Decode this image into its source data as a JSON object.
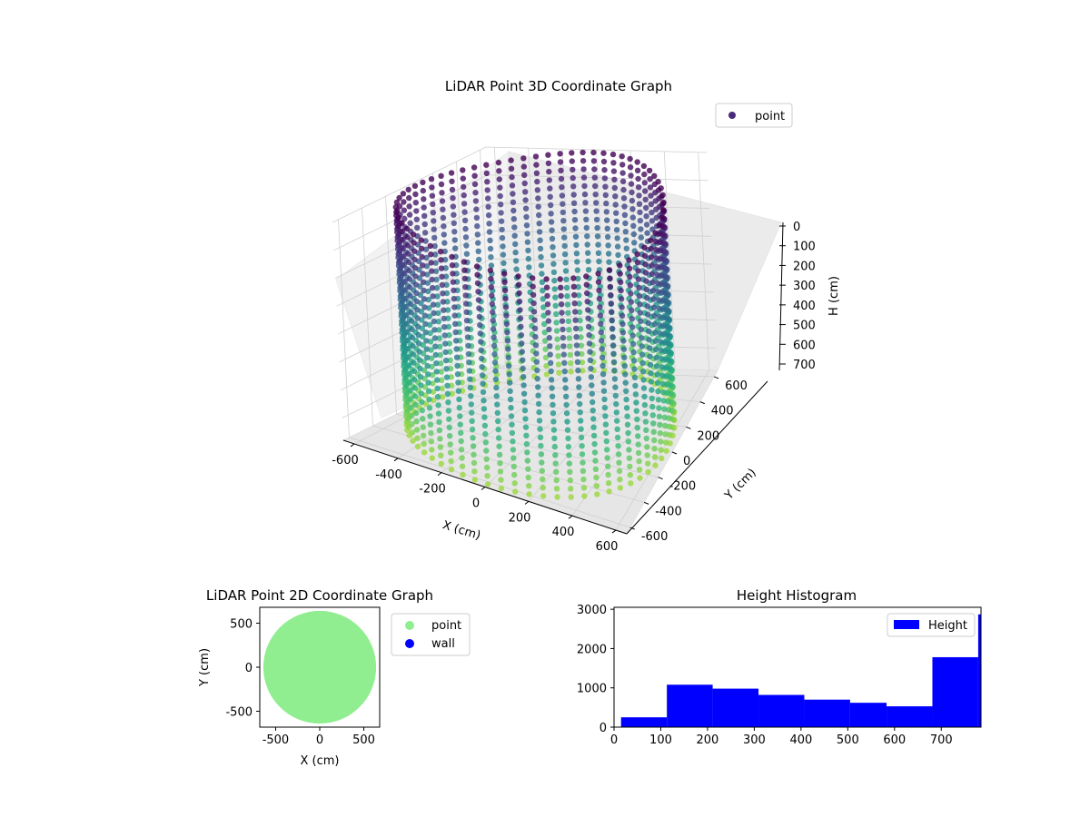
{
  "chart_data": [
    {
      "type": "scatter",
      "projection": "3d",
      "title": "LiDAR Point 3D Coordinate Graph",
      "xlabel": "X (cm)",
      "ylabel": "Y (cm)",
      "zlabel": "H (cm)",
      "xticks": [
        -600,
        -400,
        -200,
        0,
        200,
        400,
        600
      ],
      "yticks": [
        -600,
        -400,
        -200,
        0,
        200,
        400,
        600
      ],
      "zticks": [
        0,
        100,
        200,
        300,
        400,
        500,
        600,
        700
      ],
      "xlim": [
        -650,
        650
      ],
      "ylim": [
        -650,
        650
      ],
      "zlim": [
        780,
        0
      ],
      "zaxis_inverted": true,
      "colormap": "viridis",
      "legend": [
        {
          "label": "point",
          "color": "#472c7a"
        }
      ],
      "legend_position": "upper-right",
      "grid": true,
      "series": [
        {
          "name": "point",
          "shape": "circular wall",
          "radius": 620,
          "h_min": 0,
          "h_max": 780
        }
      ]
    },
    {
      "type": "scatter",
      "title": "LiDAR Point 2D Coordinate Graph",
      "xlabel": "X (cm)",
      "ylabel": "Y (cm)",
      "xticks": [
        -500,
        0,
        500
      ],
      "yticks": [
        -500,
        0,
        500
      ],
      "xlim": [
        -680,
        680
      ],
      "ylim": [
        -680,
        680
      ],
      "legend": [
        {
          "label": "point",
          "color": "#90ee90"
        },
        {
          "label": "wall",
          "color": "#0000ff"
        }
      ],
      "legend_position": "outside-right",
      "series": [
        {
          "name": "point",
          "color": "#90ee90",
          "shape": "filled disk",
          "radius": 640
        },
        {
          "name": "wall",
          "color": "#0000ff",
          "points": []
        }
      ]
    },
    {
      "type": "bar",
      "subtype": "histogram",
      "title": "Height Histogram",
      "xticks": [
        0,
        100,
        200,
        300,
        400,
        500,
        600,
        700
      ],
      "yticks": [
        0,
        1000,
        2000,
        3000
      ],
      "xlim": [
        0,
        785
      ],
      "ylim": [
        0,
        3050
      ],
      "legend": [
        {
          "label": "Height",
          "color": "#0000ff"
        }
      ],
      "legend_position": "upper-right",
      "bins": [
        {
          "x0": 15,
          "x1": 113,
          "value": 250
        },
        {
          "x0": 113,
          "x1": 211,
          "value": 1080
        },
        {
          "x0": 211,
          "x1": 309,
          "value": 980
        },
        {
          "x0": 309,
          "x1": 407,
          "value": 820
        },
        {
          "x0": 407,
          "x1": 505,
          "value": 700
        },
        {
          "x0": 505,
          "x1": 583,
          "value": 620
        },
        {
          "x0": 583,
          "x1": 681,
          "value": 530
        },
        {
          "x0": 681,
          "x1": 779,
          "value": 1780
        },
        {
          "x0": 779,
          "x1": 785,
          "value": 2870
        }
      ]
    }
  ]
}
